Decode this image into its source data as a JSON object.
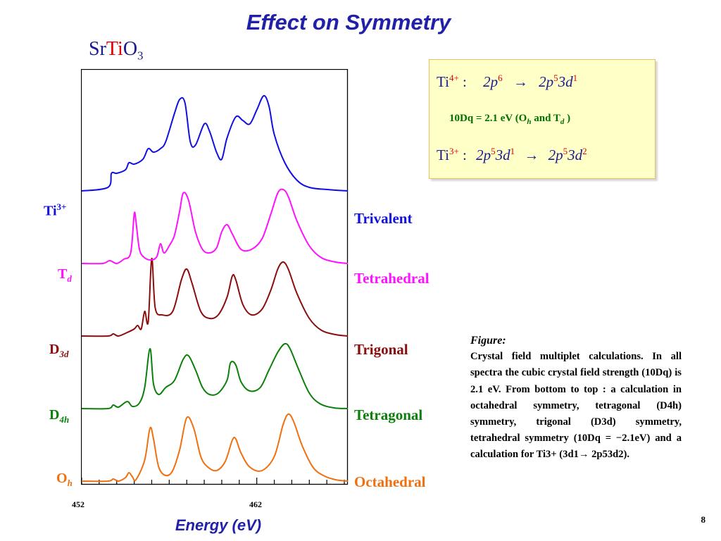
{
  "title": "Effect on Symmetry",
  "compound": {
    "a": "Sr",
    "b": "Ti",
    "c": "O",
    "sub": "3"
  },
  "info_box": {
    "line1": {
      "ion": "Ti",
      "charge": "4+",
      "sep": " :",
      "from": "2p",
      "from_sup": "6",
      "arrow": "→",
      "to_a": "2p",
      "to_a_sup": "5",
      "to_b": "3d",
      "to_b_sup": "1"
    },
    "line2": {
      "pre": "10Dq = 2.1 eV (O",
      "oh_sub": "h",
      "mid": " and  T",
      "td_sub": "d",
      "post": " )"
    },
    "line3": {
      "ion": "Ti",
      "charge": "3+",
      "sep": " :",
      "from_a": "2p",
      "from_a_sup": "5",
      "from_b": "3d",
      "from_b_sup": "1",
      "arrow": "→",
      "to_a": "2p",
      "to_a_sup": "5",
      "to_b": "3d",
      "to_b_sup": "2"
    }
  },
  "figure_caption": {
    "heading": "Figure:",
    "text": "Crystal field multiplet calculations. In all spectra the cubic crystal field strength (10Dq) is 2.1 eV. From bottom to top : a calculation in octahedral symmetry, tetragonal (D4h) symmetry, trigonal (D3d) symmetry, tetrahedral symmetry (10Dq = −2.1eV) and a calculation for Ti3+ (3d1→ 2p53d2)."
  },
  "page_number": "8",
  "chart_data": {
    "type": "line",
    "xlabel": "Energy  (eV)",
    "x_ticks": [
      "452",
      "462"
    ],
    "xlim": [
      452.0,
      467.2
    ],
    "y_axis": "none (offset spectra, arbitrary units)",
    "series": [
      {
        "left_label": "O",
        "left_sub": "h",
        "right_label": "Octahedral",
        "color": "#f07010",
        "baseline": 0.0,
        "points": [
          [
            452.0,
            0.0
          ],
          [
            453.5,
            0.0
          ],
          [
            453.8,
            0.03
          ],
          [
            454.1,
            0.0
          ],
          [
            454.5,
            0.05
          ],
          [
            454.7,
            0.12
          ],
          [
            454.9,
            0.06
          ],
          [
            455.1,
            0.02
          ],
          [
            455.6,
            0.3
          ],
          [
            455.9,
            0.75
          ],
          [
            456.1,
            0.6
          ],
          [
            456.4,
            0.2
          ],
          [
            456.8,
            0.08
          ],
          [
            457.2,
            0.15
          ],
          [
            457.6,
            0.45
          ],
          [
            458.0,
            0.9
          ],
          [
            458.4,
            0.75
          ],
          [
            458.8,
            0.35
          ],
          [
            459.2,
            0.2
          ],
          [
            459.7,
            0.15
          ],
          [
            460.2,
            0.28
          ],
          [
            460.6,
            0.58
          ],
          [
            460.8,
            0.6
          ],
          [
            461.1,
            0.4
          ],
          [
            461.6,
            0.2
          ],
          [
            462.3,
            0.15
          ],
          [
            463.0,
            0.35
          ],
          [
            463.5,
            0.8
          ],
          [
            463.8,
            0.95
          ],
          [
            464.1,
            0.85
          ],
          [
            464.6,
            0.5
          ],
          [
            465.2,
            0.2
          ],
          [
            465.8,
            0.08
          ],
          [
            466.5,
            0.02
          ],
          [
            467.2,
            0.0
          ]
        ]
      },
      {
        "left_label": "D",
        "left_sub": "4h",
        "right_label": "Tetragonal",
        "color": "#0b800b",
        "baseline": 1.0,
        "points": [
          [
            452.0,
            0.0
          ],
          [
            453.5,
            0.0
          ],
          [
            453.8,
            0.05
          ],
          [
            454.1,
            0.02
          ],
          [
            454.6,
            0.1
          ],
          [
            454.9,
            0.03
          ],
          [
            455.3,
            0.08
          ],
          [
            455.6,
            0.3
          ],
          [
            455.9,
            0.85
          ],
          [
            456.1,
            0.35
          ],
          [
            456.4,
            0.2
          ],
          [
            456.8,
            0.3
          ],
          [
            457.3,
            0.4
          ],
          [
            457.8,
            0.7
          ],
          [
            458.1,
            0.75
          ],
          [
            458.5,
            0.55
          ],
          [
            458.9,
            0.3
          ],
          [
            459.3,
            0.2
          ],
          [
            459.8,
            0.22
          ],
          [
            460.3,
            0.4
          ],
          [
            460.5,
            0.65
          ],
          [
            460.8,
            0.62
          ],
          [
            461.1,
            0.38
          ],
          [
            461.6,
            0.25
          ],
          [
            462.2,
            0.3
          ],
          [
            462.7,
            0.55
          ],
          [
            463.2,
            0.8
          ],
          [
            463.6,
            0.92
          ],
          [
            463.9,
            0.85
          ],
          [
            464.4,
            0.55
          ],
          [
            465.0,
            0.22
          ],
          [
            465.6,
            0.07
          ],
          [
            466.4,
            0.01
          ],
          [
            467.2,
            0.0
          ]
        ]
      },
      {
        "left_label": "D",
        "left_sub": "3d",
        "right_label": "Trigonal",
        "color": "#8b0d0d",
        "baseline": 2.0,
        "points": [
          [
            452.0,
            0.0
          ],
          [
            453.5,
            0.0
          ],
          [
            453.8,
            0.03
          ],
          [
            454.1,
            0.0
          ],
          [
            454.6,
            0.05
          ],
          [
            455.0,
            0.1
          ],
          [
            455.2,
            0.15
          ],
          [
            455.4,
            0.1
          ],
          [
            455.6,
            0.35
          ],
          [
            455.8,
            0.2
          ],
          [
            456.0,
            1.1
          ],
          [
            456.2,
            0.4
          ],
          [
            456.6,
            0.3
          ],
          [
            457.2,
            0.35
          ],
          [
            457.7,
            0.8
          ],
          [
            458.0,
            0.95
          ],
          [
            458.3,
            0.75
          ],
          [
            458.8,
            0.35
          ],
          [
            459.3,
            0.25
          ],
          [
            459.8,
            0.3
          ],
          [
            460.3,
            0.55
          ],
          [
            460.6,
            0.85
          ],
          [
            460.8,
            0.8
          ],
          [
            461.2,
            0.45
          ],
          [
            461.7,
            0.3
          ],
          [
            462.3,
            0.38
          ],
          [
            462.8,
            0.65
          ],
          [
            463.2,
            0.95
          ],
          [
            463.5,
            1.05
          ],
          [
            463.8,
            0.95
          ],
          [
            464.3,
            0.6
          ],
          [
            465.0,
            0.25
          ],
          [
            465.7,
            0.08
          ],
          [
            466.5,
            0.02
          ],
          [
            467.2,
            0.0
          ]
        ]
      },
      {
        "left_label": "T",
        "left_sub": "d",
        "right_label": "Tetrahedral",
        "color": "#ff10ff",
        "baseline": 3.0,
        "points": [
          [
            452.0,
            0.0
          ],
          [
            453.2,
            0.0
          ],
          [
            453.6,
            0.04
          ],
          [
            454.0,
            0.0
          ],
          [
            454.4,
            0.06
          ],
          [
            454.8,
            0.15
          ],
          [
            455.0,
            0.7
          ],
          [
            455.1,
            0.6
          ],
          [
            455.3,
            0.2
          ],
          [
            455.6,
            0.08
          ],
          [
            456.0,
            0.05
          ],
          [
            456.3,
            0.1
          ],
          [
            456.5,
            0.28
          ],
          [
            456.7,
            0.15
          ],
          [
            457.0,
            0.25
          ],
          [
            457.3,
            0.4
          ],
          [
            457.6,
            0.75
          ],
          [
            457.8,
            1.0
          ],
          [
            458.1,
            0.9
          ],
          [
            458.5,
            0.45
          ],
          [
            458.9,
            0.2
          ],
          [
            459.3,
            0.15
          ],
          [
            459.7,
            0.22
          ],
          [
            460.0,
            0.45
          ],
          [
            460.3,
            0.55
          ],
          [
            460.6,
            0.42
          ],
          [
            461.1,
            0.2
          ],
          [
            461.7,
            0.2
          ],
          [
            462.3,
            0.35
          ],
          [
            462.8,
            0.7
          ],
          [
            463.2,
            1.0
          ],
          [
            463.5,
            1.05
          ],
          [
            463.8,
            0.95
          ],
          [
            464.3,
            0.6
          ],
          [
            465.0,
            0.25
          ],
          [
            465.7,
            0.08
          ],
          [
            466.5,
            0.02
          ],
          [
            467.2,
            0.0
          ]
        ]
      },
      {
        "left_label": "Ti",
        "left_sup": "3+",
        "right_label": "Trivalent",
        "color": "#1010e0",
        "baseline": 4.0,
        "points": [
          [
            452.0,
            0.0
          ],
          [
            453.5,
            0.05
          ],
          [
            453.7,
            0.25
          ],
          [
            454.0,
            0.25
          ],
          [
            454.5,
            0.3
          ],
          [
            454.7,
            0.4
          ],
          [
            455.0,
            0.38
          ],
          [
            455.5,
            0.45
          ],
          [
            455.8,
            0.6
          ],
          [
            456.1,
            0.55
          ],
          [
            456.5,
            0.6
          ],
          [
            456.8,
            0.7
          ],
          [
            457.3,
            1.1
          ],
          [
            457.6,
            1.3
          ],
          [
            457.9,
            1.25
          ],
          [
            458.2,
            0.7
          ],
          [
            458.5,
            0.65
          ],
          [
            459.0,
            0.95
          ],
          [
            459.3,
            0.85
          ],
          [
            459.7,
            0.55
          ],
          [
            460.0,
            0.45
          ],
          [
            460.3,
            0.75
          ],
          [
            460.8,
            1.05
          ],
          [
            461.2,
            1.0
          ],
          [
            461.6,
            0.95
          ],
          [
            462.0,
            1.15
          ],
          [
            462.4,
            1.35
          ],
          [
            462.7,
            1.2
          ],
          [
            463.0,
            0.8
          ],
          [
            463.6,
            0.4
          ],
          [
            464.3,
            0.15
          ],
          [
            465.0,
            0.05
          ],
          [
            466.0,
            0.02
          ],
          [
            467.2,
            0.0
          ]
        ]
      }
    ]
  }
}
